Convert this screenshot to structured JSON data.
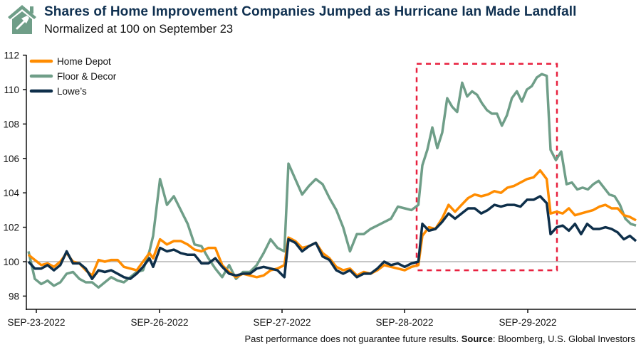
{
  "title": "Shares of Home Improvement Companies Jumped as Hurricane Ian Made Landfall",
  "subtitle": "Normalized at 100 on September 23",
  "footer": {
    "disclaimer": "Past performance does not guarantee future results.",
    "source_label": "Source",
    "source_text": ": Bloomberg, U.S. Global Investors"
  },
  "logo": {
    "icon": "house-hammer-icon",
    "color": "#6f9e88"
  },
  "chart_data": {
    "type": "line",
    "title": "Shares of Home Improvement Companies Jumped as Hurricane Ian Made Landfall",
    "subtitle": "Normalized at 100 on September 23",
    "xlabel": "",
    "ylabel": "",
    "ylim": [
      97.5,
      112
    ],
    "yticks": [
      "98",
      "100",
      "102",
      "104",
      "106",
      "108",
      "110",
      "112"
    ],
    "ytick_values": [
      98,
      100,
      102,
      104,
      106,
      108,
      110,
      112
    ],
    "dates": [
      "2022-09-23",
      "2022-09-26",
      "2022-09-27",
      "2022-09-28",
      "2022-09-29"
    ],
    "xticks": [
      "SEP-23-2022",
      "SEP-26-2022",
      "SEP-27-2022",
      "SEP-28-2022",
      "SEP-29-2022"
    ],
    "grid": false,
    "reference_line": {
      "value": 100,
      "color": "#b3b3b3"
    },
    "legend_position": "top-left",
    "highlight": {
      "from_date": "2022-09-28",
      "to_date": "2022-09-29",
      "ymin": 99.5,
      "ymax": 111.5,
      "color": "#e8213f",
      "style": "dashed"
    },
    "series": [
      {
        "name": "Home Depot",
        "color": "#ff8c00",
        "intraday_values": [
          [
            100.4,
            100.1,
            99.8,
            99.9,
            99.7,
            100.0,
            100.5,
            100.0,
            99.9,
            99.5,
            99.2,
            100.1,
            100.0,
            100.1,
            100.1,
            99.7,
            99.6,
            99.5,
            100.0,
            100.5
          ],
          [
            100.2,
            101.3,
            101.0,
            101.2,
            101.2,
            101.0,
            100.7,
            100.6,
            100.8,
            100.8,
            99.8,
            99.4,
            99.1,
            99.3,
            99.2,
            99.1,
            99.2,
            99.5,
            99.6,
            99.8
          ],
          [
            101.4,
            101.2,
            100.8,
            100.9,
            101.1,
            100.5,
            100.2,
            99.7,
            99.5,
            99.6,
            99.2,
            99.4,
            99.3,
            99.5,
            99.8,
            99.7,
            99.6,
            99.5,
            99.7,
            99.8
          ],
          [
            101.5,
            102.0,
            101.9,
            102.5,
            103.3,
            102.9,
            103.3,
            103.7,
            103.9,
            103.8,
            103.9,
            104.1,
            104.0,
            104.3,
            104.4,
            104.6,
            104.8,
            104.9,
            105.3,
            104.8
          ],
          [
            102.8,
            102.9,
            102.8,
            103.1,
            102.7,
            102.8,
            102.9,
            103.0,
            103.2,
            103.3,
            103.1,
            103.1,
            102.7,
            102.6,
            102.4
          ]
        ]
      },
      {
        "name": "Floor & Decor",
        "color": "#6f9e88",
        "intraday_values": [
          [
            100.6,
            99.0,
            98.7,
            98.9,
            98.6,
            98.8,
            99.3,
            99.4,
            99.0,
            98.8,
            98.8,
            98.5,
            98.8,
            99.1,
            98.9,
            98.8,
            99.1,
            99.4,
            99.5,
            100.6
          ],
          [
            101.5,
            104.8,
            103.3,
            103.8,
            103.0,
            102.2,
            101.0,
            100.9,
            100.2,
            99.6,
            99.1,
            99.8,
            99.0,
            99.4,
            99.4,
            99.8,
            100.5,
            101.3,
            100.8,
            100.6
          ],
          [
            105.7,
            104.8,
            103.9,
            104.4,
            104.8,
            104.5,
            103.7,
            103.0,
            102.0,
            100.6,
            101.6,
            101.6,
            101.9,
            102.1,
            102.3,
            102.5,
            103.2,
            103.1,
            103.0,
            103.3
          ],
          [
            105.6,
            106.5,
            107.8,
            106.6,
            107.5,
            109.5,
            109.0,
            108.7,
            110.4,
            109.6,
            109.9,
            109.7,
            109.2,
            108.8,
            108.6,
            108.6,
            107.9,
            108.5,
            109.5,
            109.9,
            109.3,
            110.0,
            110.2,
            110.7,
            110.9,
            110.8
          ],
          [
            106.5,
            105.9,
            106.4,
            104.5,
            104.6,
            104.2,
            104.3,
            104.2,
            104.5,
            104.7,
            104.3,
            103.9,
            103.8,
            103.3,
            102.5,
            102.2,
            102.1
          ]
        ]
      },
      {
        "name": "Lowe’s",
        "color": "#0e2f4a",
        "intraday_values": [
          [
            100.0,
            99.6,
            99.6,
            99.8,
            99.5,
            99.8,
            100.6,
            99.9,
            99.9,
            99.6,
            99.0,
            99.5,
            99.4,
            99.5,
            99.3,
            99.1,
            99.0,
            99.3,
            99.7,
            100.2
          ],
          [
            99.7,
            100.8,
            100.6,
            100.7,
            100.5,
            100.4,
            100.4,
            99.9,
            99.9,
            100.2,
            99.7,
            99.3,
            99.2,
            99.3,
            99.3,
            99.6,
            99.7,
            99.6,
            99.5,
            99.1
          ],
          [
            101.3,
            101.1,
            100.6,
            100.9,
            101.1,
            100.3,
            100.1,
            99.5,
            99.3,
            99.5,
            99.1,
            99.3,
            99.3,
            99.6,
            100.0,
            99.8,
            99.9,
            99.7,
            99.9,
            100.0
          ],
          [
            102.2,
            101.8,
            101.9,
            102.3,
            102.8,
            102.5,
            102.8,
            103.1,
            103.1,
            102.8,
            103.0,
            103.3,
            103.2,
            103.3,
            103.3,
            103.2,
            103.6,
            103.6,
            103.8,
            103.4
          ],
          [
            101.6,
            102.0,
            102.1,
            101.8,
            102.2,
            101.6,
            102.2,
            101.9,
            101.9,
            102.0,
            101.9,
            101.7,
            101.3,
            101.5,
            101.2
          ]
        ]
      }
    ]
  }
}
